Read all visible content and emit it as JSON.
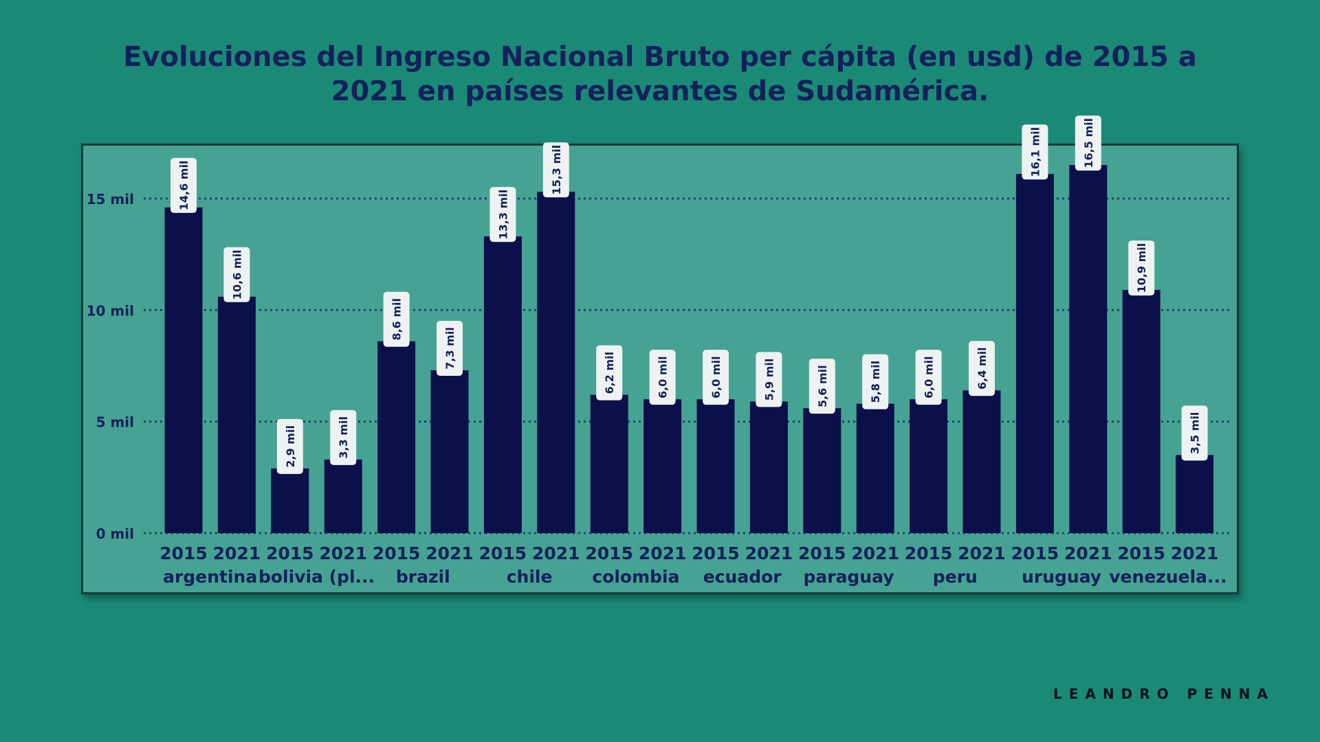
{
  "colors": {
    "background": "#1a8a77",
    "panel": "#46a393",
    "bar": "#0b0f4a",
    "text": "#14205a",
    "label_bg": "#eef3f2"
  },
  "header": {
    "title_line1": "Evoluciones del Ingreso Nacional Bruto per cápita (en usd) de 2015 a",
    "title_line2": "2021 en países relevantes de Sudamérica."
  },
  "brand": "LEANDRO PENNA",
  "chart_data": {
    "type": "bar",
    "grid": true,
    "ylim": [
      0,
      17
    ],
    "yticks": [
      {
        "value": 0,
        "label": "0 mil"
      },
      {
        "value": 5,
        "label": "5 mil"
      },
      {
        "value": 10,
        "label": "10 mil"
      },
      {
        "value": 15,
        "label": "15 mil"
      }
    ],
    "groups": [
      {
        "country": "argentina",
        "bars": [
          {
            "year": "2015",
            "value": 14.6,
            "label": "14,6 mil"
          },
          {
            "year": "2021",
            "value": 10.6,
            "label": "10,6 mil"
          }
        ]
      },
      {
        "country": "bolivia (pl...",
        "bars": [
          {
            "year": "2015",
            "value": 2.9,
            "label": "2,9 mil"
          },
          {
            "year": "2021",
            "value": 3.3,
            "label": "3,3 mil"
          }
        ]
      },
      {
        "country": "brazil",
        "bars": [
          {
            "year": "2015",
            "value": 8.6,
            "label": "8,6 mil"
          },
          {
            "year": "2021",
            "value": 7.3,
            "label": "7,3 mil"
          }
        ]
      },
      {
        "country": "chile",
        "bars": [
          {
            "year": "2015",
            "value": 13.3,
            "label": "13,3 mil"
          },
          {
            "year": "2021",
            "value": 15.3,
            "label": "15,3 mil"
          }
        ]
      },
      {
        "country": "colombia",
        "bars": [
          {
            "year": "2015",
            "value": 6.2,
            "label": "6,2 mil"
          },
          {
            "year": "2021",
            "value": 6.0,
            "label": "6,0 mil"
          }
        ]
      },
      {
        "country": "ecuador",
        "bars": [
          {
            "year": "2015",
            "value": 6.0,
            "label": "6,0 mil"
          },
          {
            "year": "2021",
            "value": 5.9,
            "label": "5,9 mil"
          }
        ]
      },
      {
        "country": "paraguay",
        "bars": [
          {
            "year": "2015",
            "value": 5.6,
            "label": "5,6 mil"
          },
          {
            "year": "2021",
            "value": 5.8,
            "label": "5,8 mil"
          }
        ]
      },
      {
        "country": "peru",
        "bars": [
          {
            "year": "2015",
            "value": 6.0,
            "label": "6,0 mil"
          },
          {
            "year": "2021",
            "value": 6.4,
            "label": "6,4 mil"
          }
        ]
      },
      {
        "country": "uruguay",
        "bars": [
          {
            "year": "2015",
            "value": 16.1,
            "label": "16,1 mil"
          },
          {
            "year": "2021",
            "value": 16.5,
            "label": "16,5 mil"
          }
        ]
      },
      {
        "country": "venezuela...",
        "bars": [
          {
            "year": "2015",
            "value": 10.9,
            "label": "10,9 mil"
          },
          {
            "year": "2021",
            "value": 3.5,
            "label": "3,5 mil"
          }
        ]
      }
    ]
  }
}
